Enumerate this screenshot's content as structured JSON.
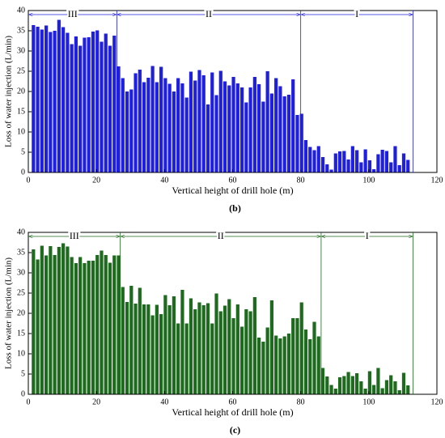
{
  "chart_data": [
    {
      "type": "bar",
      "caption": "(b)",
      "xlabel": "Vertical height of drill hole (m)",
      "ylabel": "Loss of water injection (L/min)",
      "color": "#1f1fe0",
      "xlim": [
        0,
        120
      ],
      "xticks": [
        0,
        20,
        40,
        60,
        80,
        100,
        120
      ],
      "ylim": [
        0,
        40
      ],
      "yticks": [
        0,
        5,
        10,
        15,
        20,
        25,
        30,
        35,
        40
      ],
      "regions": [
        {
          "label": "III",
          "start": 0,
          "end": 26
        },
        {
          "label": "II",
          "start": 26,
          "end": 80
        },
        {
          "label": "I",
          "start": 80,
          "end": 113
        }
      ],
      "x": [
        1.5,
        2.75,
        4,
        5.25,
        6.5,
        7.75,
        9,
        10.25,
        11.5,
        12.75,
        14,
        15.25,
        16.5,
        17.75,
        19,
        20.25,
        21.5,
        22.75,
        24,
        25.25,
        26.5,
        27.75,
        29,
        30.25,
        31.5,
        32.75,
        34,
        35.25,
        36.5,
        37.75,
        39,
        40.25,
        41.5,
        42.75,
        44,
        45.25,
        46.5,
        47.75,
        49,
        50.25,
        51.5,
        52.75,
        54,
        55.25,
        56.5,
        57.75,
        59,
        60.25,
        61.5,
        62.75,
        64,
        65.25,
        66.5,
        67.75,
        69,
        70.25,
        71.5,
        72.75,
        74,
        75.25,
        76.5,
        77.75,
        79,
        80.25,
        81.5,
        82.75,
        84,
        85.25,
        86.5,
        87.75,
        89,
        90.25,
        91.5,
        92.75,
        94,
        95.25,
        96.5,
        97.75,
        99,
        100.25,
        101.5,
        102.75,
        104,
        105.25,
        106.5,
        107.75,
        109,
        110.25,
        111.5
      ],
      "values": [
        36.4,
        36,
        35.3,
        36.3,
        34.7,
        35,
        37.7,
        35.9,
        34.5,
        31.7,
        33.6,
        31.3,
        33.3,
        33.4,
        34.8,
        35.1,
        32.3,
        34.3,
        31.3,
        33.8,
        26.2,
        23.3,
        20,
        20.5,
        24.5,
        25.4,
        22.3,
        23.4,
        26.3,
        22.3,
        26.1,
        23.3,
        21.9,
        20,
        23.3,
        22,
        18.5,
        24.9,
        22.7,
        25.3,
        24,
        16.8,
        24.7,
        19.1,
        25.1,
        22.5,
        21.5,
        23.6,
        22,
        21,
        17.3,
        21,
        23.6,
        21.8,
        17.5,
        25,
        19.5,
        23.3,
        21.3,
        18.8,
        19.2,
        23,
        14.2,
        14.5,
        8,
        6.3,
        5.5,
        6.5,
        3.8,
        2,
        0.7,
        4.7,
        5.2,
        5.3,
        3.2,
        6.5,
        5.5,
        2.5,
        5.7,
        3,
        0.8,
        4.5,
        5.6,
        5.3,
        2.5,
        6.5,
        1.8,
        4.7,
        3.1
      ]
    },
    {
      "type": "bar",
      "caption": "(c)",
      "xlabel": "Vertical height of drill hole (m)",
      "ylabel": "Loss of water injection (L/min)",
      "color": "#1e6a1e",
      "xlim": [
        0,
        120
      ],
      "xticks": [
        0,
        20,
        40,
        60,
        80,
        100,
        120
      ],
      "ylim": [
        0,
        40
      ],
      "yticks": [
        0,
        5,
        10,
        15,
        20,
        25,
        30,
        35,
        40
      ],
      "regions": [
        {
          "label": "III",
          "start": 0,
          "end": 27
        },
        {
          "label": "II",
          "start": 27,
          "end": 86
        },
        {
          "label": "I",
          "start": 86,
          "end": 113
        }
      ],
      "x": [
        1.5,
        2.75,
        4,
        5.25,
        6.5,
        7.75,
        9,
        10.25,
        11.5,
        12.75,
        14,
        15.25,
        16.5,
        17.75,
        19,
        20.25,
        21.5,
        22.75,
        24,
        25.25,
        26.5,
        27.75,
        29,
        30.25,
        31.5,
        32.75,
        34,
        35.25,
        36.5,
        37.75,
        39,
        40.25,
        41.5,
        42.75,
        44,
        45.25,
        46.5,
        47.75,
        49,
        50.25,
        51.5,
        52.75,
        54,
        55.25,
        56.5,
        57.75,
        59,
        60.25,
        61.5,
        62.75,
        64,
        65.25,
        66.5,
        67.75,
        69,
        70.25,
        71.5,
        72.75,
        74,
        75.25,
        76.5,
        77.75,
        79,
        80.25,
        81.5,
        82.75,
        84,
        85.25,
        86.5,
        87.75,
        89,
        90.25,
        91.5,
        92.75,
        94,
        95.25,
        96.5,
        97.75,
        99,
        100.25,
        101.5,
        102.75,
        104,
        105.25,
        106.5,
        107.75,
        109,
        110.25,
        111.5
      ],
      "values": [
        35.8,
        33.3,
        36.7,
        34.3,
        36.6,
        34.4,
        36.4,
        37.3,
        36.5,
        33.9,
        32.4,
        33.9,
        32.4,
        33,
        33,
        34.4,
        35.5,
        34.4,
        32.5,
        34.3,
        34.3,
        26.5,
        22.8,
        26.8,
        22.4,
        26.3,
        22.2,
        22.2,
        19.5,
        22.1,
        19.8,
        24.5,
        22,
        24.2,
        17.5,
        25.8,
        17.5,
        23.7,
        21,
        22.7,
        22,
        22.5,
        17.5,
        24.9,
        20.5,
        21.9,
        23.5,
        18.8,
        22.2,
        16.7,
        21,
        20.5,
        24,
        14,
        13,
        16.5,
        23.2,
        14.5,
        13.8,
        14.3,
        15,
        18.8,
        18.8,
        22.7,
        16,
        13.6,
        17.9,
        14.3,
        6.5,
        4.4,
        2.3,
        1.4,
        4.2,
        4.5,
        5.5,
        4.5,
        5.2,
        3.2,
        1.4,
        5.7,
        2.3,
        6.5,
        1.5,
        3.5,
        4.7,
        3.2,
        1,
        5.3,
        2.2
      ]
    }
  ]
}
